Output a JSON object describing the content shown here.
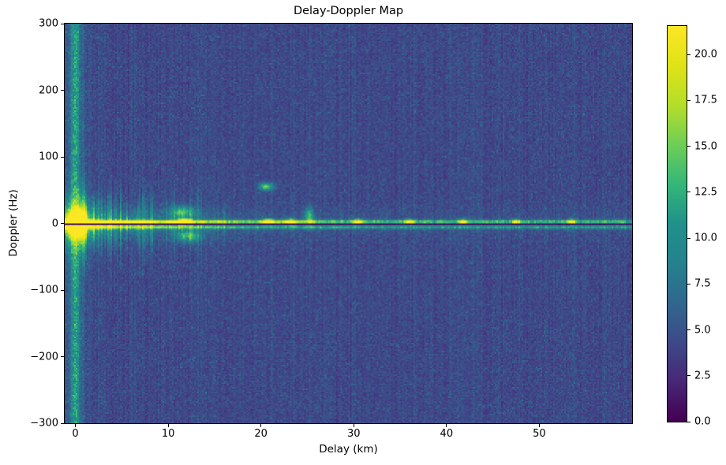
{
  "figure": {
    "background": "#ffffff"
  },
  "chart_data": {
    "type": "heatmap",
    "title": "Delay-Doppler Map",
    "xlabel": "Delay (km)",
    "ylabel": "Doppler (Hz)",
    "xlim": [
      -1.15,
      60.0
    ],
    "ylim": [
      -300,
      300
    ],
    "x_ticks": [
      0,
      10,
      20,
      30,
      40,
      50
    ],
    "x_tick_labels": [
      "0",
      "10",
      "20",
      "30",
      "40",
      "50"
    ],
    "y_ticks": [
      300,
      200,
      100,
      0,
      -100,
      -200,
      -300
    ],
    "y_tick_labels": [
      "300",
      "200",
      "100",
      "0",
      "−100",
      "−200",
      "−300"
    ],
    "colormap": "viridis",
    "grid": {
      "cols": 360,
      "rows": 254
    },
    "colorbar": {
      "vmin": 0.0,
      "vmax": 21.55,
      "ticks": [
        0.0,
        2.5,
        5.0,
        7.5,
        10.0,
        12.5,
        15.0,
        17.5,
        20.0
      ],
      "tick_labels": [
        "0.0",
        "2.5",
        "5.0",
        "7.5",
        "10.0",
        "12.5",
        "15.0",
        "17.5",
        "20.0"
      ],
      "position": "right"
    },
    "noise": {
      "base": 2.9,
      "gauss": 1.05,
      "uniform": 1.2,
      "column": 0.3
    },
    "features": {
      "direct_path_blob": {
        "delay_km": 0,
        "doppler_hz": 0,
        "amp": 24,
        "sigma_delay_km": 0.5,
        "sigma_doppler_hz": 10,
        "glow_amp": 8,
        "glow_sigma_delay_km": 1.2,
        "glow_sigma_doppler_hz": 30
      },
      "zero_delay_stripe": {
        "amp": 6.0,
        "sigma_km": 0.32,
        "glow_amp": 1.6,
        "glow_sigma_km": 1.0
      },
      "zero_doppler_band": {
        "upper_line_doppler_hz": 2.5,
        "upper_line_base": 8.8,
        "upper_line_peak_extra": 12.5,
        "upper_decay_km": 11,
        "upper_sigma_hz": 1.9,
        "dark_notch_doppler_hz": -1.0,
        "dark_notch_halfwidth_hz": 1.3,
        "dark_notch_value": 1.0,
        "lower_line_doppler_hz": -5.5,
        "lower_line_base": 6.2,
        "lower_line_peak_extra": 8.5,
        "lower_decay_km": 8.5,
        "lower_sigma_hz": 2.0,
        "halo_amp": 4.2,
        "halo_decay_km": 9,
        "halo_base": 0.7,
        "halo_sigma_hz": 16
      },
      "clutter_grass": {
        "delay_min_km": 0.2,
        "delay_max_km": 17,
        "prob": 0.5,
        "decay_km": 7.5,
        "far_delay_max_km": 32,
        "far_prob": 0.1,
        "max_doppler_extent_hz": 60
      },
      "echo_spots": [
        {
          "delay_km": 11.8,
          "doppler_hz": 2.5,
          "amp": 18.0,
          "sx_km": 0.5,
          "sy_hz": 3
        },
        {
          "delay_km": 11.5,
          "doppler_hz": 17.0,
          "amp": 8.0,
          "sx_km": 0.9,
          "sy_hz": 6
        },
        {
          "delay_km": 12.2,
          "doppler_hz": -19.0,
          "amp": 8.0,
          "sx_km": 0.9,
          "sy_hz": 6
        },
        {
          "delay_km": 20.8,
          "doppler_hz": 2.5,
          "amp": 15.0,
          "sx_km": 0.45,
          "sy_hz": 3
        },
        {
          "delay_km": 23.2,
          "doppler_hz": 2.0,
          "amp": 12.5,
          "sx_km": 0.45,
          "sy_hz": 3.5
        },
        {
          "delay_km": 25.2,
          "doppler_hz": 10.0,
          "amp": 8.5,
          "sx_km": 0.35,
          "sy_hz": 9
        },
        {
          "delay_km": 20.6,
          "doppler_hz": 55.0,
          "amp": 10.5,
          "sx_km": 0.55,
          "sy_hz": 4
        },
        {
          "delay_km": 30.5,
          "doppler_hz": 2.5,
          "amp": 11.0,
          "sx_km": 0.4,
          "sy_hz": 3
        },
        {
          "delay_km": 36.0,
          "doppler_hz": 2.5,
          "amp": 10.5,
          "sx_km": 0.35,
          "sy_hz": 3
        },
        {
          "delay_km": 41.8,
          "doppler_hz": 2.5,
          "amp": 10.5,
          "sx_km": 0.35,
          "sy_hz": 3
        },
        {
          "delay_km": 47.5,
          "doppler_hz": 2.5,
          "amp": 10.0,
          "sx_km": 0.3,
          "sy_hz": 3
        },
        {
          "delay_km": 53.5,
          "doppler_hz": 2.5,
          "amp": 10.0,
          "sx_km": 0.3,
          "sy_hz": 3
        }
      ]
    }
  }
}
